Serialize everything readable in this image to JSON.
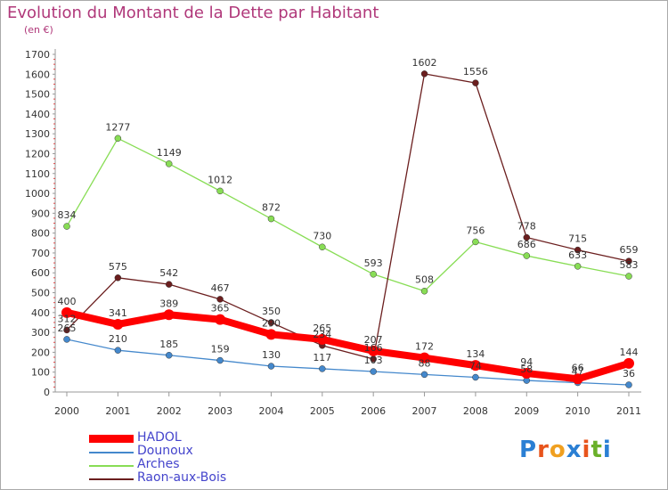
{
  "header": {
    "title": "Evolution du Montant de la Dette par Habitant",
    "unit": "(en €)"
  },
  "logo": {
    "text": "Proxiti",
    "colors": [
      "#2a7fd4",
      "#e8541c",
      "#f0a020",
      "#2a7fd4",
      "#e8541c",
      "#6ab02a",
      "#2a7fd4"
    ]
  },
  "chart_data": {
    "type": "line",
    "title": "Evolution du Montant de la Dette par Habitant",
    "subtitle": "(en €)",
    "xlabel": "",
    "ylabel": "",
    "x": [
      "2000",
      "2001",
      "2002",
      "2003",
      "2004",
      "2005",
      "2006",
      "2007",
      "2008",
      "2009",
      "2010",
      "2011"
    ],
    "yticks": [
      "0",
      "100",
      "200",
      "300",
      "400",
      "500",
      "600",
      "700",
      "800",
      "900",
      "1000",
      "1100",
      "1200",
      "1300",
      "1400",
      "1500",
      "1600",
      "1700"
    ],
    "ylim": [
      0,
      1700
    ],
    "grid": false,
    "legend_position": "bottom-left",
    "series": [
      {
        "name": "HADOL",
        "color": "#ff0000",
        "values": [
          400,
          341,
          389,
          365,
          290,
          265,
          207,
          172,
          134,
          94,
          66,
          144
        ]
      },
      {
        "name": "Dounoux",
        "color": "#4488cc",
        "values": [
          265,
          210,
          185,
          159,
          130,
          117,
          103,
          88,
          74,
          58,
          47,
          36
        ]
      },
      {
        "name": "Arches",
        "color": "#88dd55",
        "values": [
          834,
          1277,
          1149,
          1012,
          872,
          730,
          593,
          508,
          756,
          686,
          633,
          583
        ]
      },
      {
        "name": "Raon-aux-Bois",
        "color": "#6b1e1e",
        "values": [
          312,
          575,
          542,
          467,
          350,
          234,
          166,
          1602,
          1556,
          778,
          715,
          659
        ]
      }
    ]
  }
}
